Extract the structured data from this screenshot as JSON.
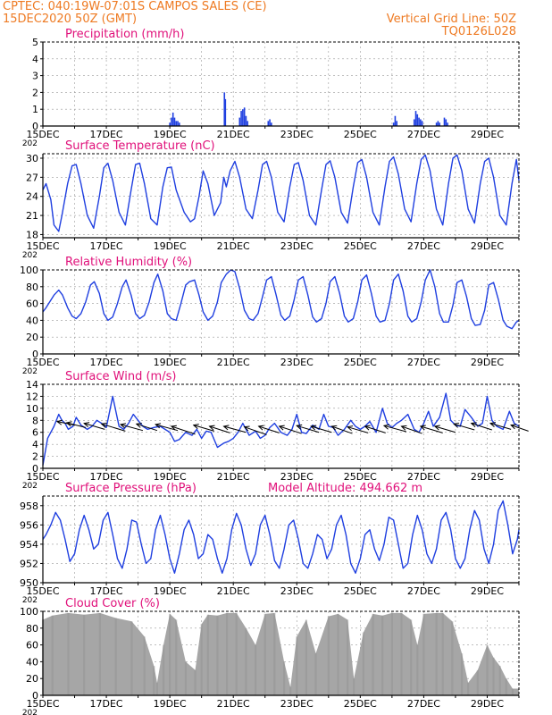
{
  "header": {
    "line1": "CPTEC:   040:19W-07:01S   CAMPOS SALES (CE)",
    "line2": "15DEC2020 50Z (GMT)",
    "vgrid": "Vertical Grid Line: 50Z",
    "code": "TQ0126L028"
  },
  "colors": {
    "header": "#ee7a22",
    "title": "#e0107a",
    "line": "#1f3fe0",
    "cloud": "#a6a6a6",
    "grid": "#999999"
  },
  "x_tick_labels": [
    "15DEC",
    "17DEC",
    "19DEC",
    "21DEC",
    "23DEC",
    "25DEC",
    "27DEC",
    "29DEC"
  ],
  "year_fragment": "202",
  "model_altitude_label": "Model Altitude: 494.662  m",
  "chart_data": [
    {
      "id": "precipitation",
      "type": "bar",
      "title": "Precipitation  (mm/h)",
      "xlim": [
        0,
        15
      ],
      "ylim": [
        0,
        5
      ],
      "yticks": [
        0,
        1,
        2,
        3,
        4,
        5
      ],
      "x": [
        4.0,
        4.05,
        4.1,
        4.15,
        4.2,
        4.25,
        4.3,
        5.72,
        5.75,
        6.2,
        6.25,
        6.3,
        6.35,
        6.4,
        6.45,
        7.1,
        7.15,
        7.2,
        11.05,
        11.1,
        11.15,
        11.7,
        11.75,
        11.8,
        11.85,
        11.9,
        11.95,
        12.4,
        12.45,
        12.5,
        12.65,
        12.7,
        12.75
      ],
      "values": [
        0.2,
        0.5,
        0.8,
        0.5,
        0.3,
        0.3,
        0.2,
        2.0,
        1.6,
        0.5,
        0.9,
        1.0,
        1.1,
        0.6,
        0.3,
        0.3,
        0.4,
        0.2,
        0.2,
        0.6,
        0.3,
        0.4,
        0.9,
        0.7,
        0.5,
        0.4,
        0.3,
        0.2,
        0.3,
        0.2,
        0.5,
        0.4,
        0.2
      ]
    },
    {
      "id": "temperature",
      "type": "line",
      "title": "Surface Temperature (nC)",
      "xlim": [
        0,
        15
      ],
      "ylim": [
        17.5,
        30.7
      ],
      "yticks": [
        18,
        21,
        24,
        27,
        30
      ],
      "x": [
        0.0,
        0.1,
        0.25,
        0.35,
        0.5,
        0.6,
        0.78,
        0.92,
        1.05,
        1.2,
        1.4,
        1.6,
        1.78,
        1.92,
        2.05,
        2.2,
        2.4,
        2.6,
        2.78,
        2.92,
        3.05,
        3.2,
        3.4,
        3.6,
        3.78,
        3.92,
        4.05,
        4.2,
        4.45,
        4.65,
        4.78,
        4.92,
        5.05,
        5.2,
        5.4,
        5.6,
        5.7,
        5.78,
        5.9,
        6.05,
        6.2,
        6.4,
        6.6,
        6.78,
        6.92,
        7.05,
        7.2,
        7.4,
        7.6,
        7.78,
        7.92,
        8.05,
        8.2,
        8.4,
        8.6,
        8.78,
        8.92,
        9.05,
        9.2,
        9.4,
        9.6,
        9.78,
        9.92,
        10.05,
        10.2,
        10.4,
        10.6,
        10.78,
        10.92,
        11.05,
        11.2,
        11.4,
        11.6,
        11.78,
        11.92,
        12.05,
        12.2,
        12.4,
        12.6,
        12.78,
        12.92,
        13.05,
        13.2,
        13.4,
        13.6,
        13.78,
        13.92,
        14.05,
        14.2,
        14.4,
        14.6,
        14.78,
        14.92,
        15.0
      ],
      "values": [
        25.0,
        26.0,
        23.5,
        19.5,
        18.5,
        21.0,
        26.0,
        28.8,
        29.0,
        26.0,
        21.0,
        19.0,
        24.0,
        28.5,
        29.2,
        26.5,
        21.5,
        19.5,
        25.0,
        29.0,
        29.2,
        26.0,
        20.5,
        19.5,
        25.5,
        28.5,
        28.6,
        25.0,
        21.5,
        20.0,
        20.5,
        24.0,
        28.0,
        26.0,
        21.0,
        23.0,
        27.0,
        25.5,
        28.0,
        29.5,
        27.0,
        22.0,
        20.5,
        25.0,
        29.0,
        29.5,
        27.0,
        21.5,
        20.0,
        25.5,
        29.0,
        29.3,
        26.5,
        21.0,
        19.5,
        25.0,
        29.0,
        29.6,
        27.0,
        21.5,
        19.8,
        25.5,
        29.3,
        29.8,
        27.0,
        21.5,
        19.5,
        25.5,
        29.5,
        30.2,
        27.5,
        22.0,
        20.0,
        26.0,
        29.8,
        30.5,
        28.0,
        22.0,
        19.5,
        26.0,
        30.0,
        30.5,
        28.0,
        22.0,
        19.8,
        26.0,
        29.5,
        30.0,
        27.0,
        21.0,
        19.5,
        26.0,
        29.8,
        26.5
      ]
    },
    {
      "id": "humidity",
      "type": "line",
      "title": "Relative Humidity  (%)",
      "xlim": [
        0,
        15
      ],
      "ylim": [
        0,
        100
      ],
      "yticks": [
        0,
        20,
        40,
        60,
        80,
        100
      ],
      "x": [
        0.0,
        0.1,
        0.35,
        0.5,
        0.62,
        0.78,
        0.92,
        1.05,
        1.2,
        1.35,
        1.5,
        1.62,
        1.78,
        1.92,
        2.05,
        2.2,
        2.35,
        2.5,
        2.62,
        2.78,
        2.92,
        3.05,
        3.2,
        3.35,
        3.5,
        3.62,
        3.78,
        3.92,
        4.05,
        4.2,
        4.35,
        4.5,
        4.62,
        4.78,
        4.92,
        5.05,
        5.2,
        5.35,
        5.5,
        5.62,
        5.78,
        5.92,
        6.05,
        6.2,
        6.35,
        6.5,
        6.62,
        6.78,
        6.92,
        7.05,
        7.2,
        7.35,
        7.5,
        7.62,
        7.78,
        7.92,
        8.05,
        8.2,
        8.35,
        8.5,
        8.62,
        8.78,
        8.92,
        9.05,
        9.2,
        9.35,
        9.5,
        9.62,
        9.78,
        9.92,
        10.05,
        10.2,
        10.35,
        10.5,
        10.62,
        10.78,
        10.92,
        11.05,
        11.2,
        11.35,
        11.5,
        11.62,
        11.78,
        11.92,
        12.05,
        12.2,
        12.35,
        12.5,
        12.62,
        12.78,
        12.92,
        13.05,
        13.2,
        13.35,
        13.5,
        13.62,
        13.78,
        13.92,
        14.05,
        14.2,
        14.35,
        14.5,
        14.62,
        14.78,
        14.92,
        15.0
      ],
      "values": [
        50,
        55,
        70,
        76,
        70,
        55,
        45,
        42,
        48,
        62,
        82,
        86,
        72,
        48,
        40,
        44,
        60,
        80,
        88,
        70,
        48,
        42,
        46,
        62,
        85,
        95,
        75,
        48,
        42,
        40,
        60,
        82,
        86,
        88,
        70,
        50,
        40,
        45,
        62,
        85,
        95,
        100,
        98,
        78,
        52,
        42,
        40,
        48,
        68,
        88,
        92,
        70,
        46,
        40,
        45,
        65,
        88,
        92,
        70,
        44,
        38,
        42,
        60,
        86,
        92,
        72,
        45,
        38,
        42,
        62,
        88,
        94,
        72,
        45,
        38,
        40,
        60,
        88,
        95,
        75,
        45,
        38,
        42,
        62,
        88,
        100,
        80,
        48,
        38,
        38,
        58,
        85,
        88,
        68,
        42,
        34,
        35,
        52,
        82,
        85,
        65,
        40,
        33,
        30,
        38,
        40
      ]
    },
    {
      "id": "wind",
      "type": "line",
      "title": "Surface Wind  (m/s)",
      "xlim": [
        0,
        15
      ],
      "ylim": [
        0,
        14
      ],
      "yticks": [
        0,
        2,
        4,
        6,
        8,
        10,
        12,
        14
      ],
      "x": [
        0.0,
        0.05,
        0.15,
        0.25,
        0.35,
        0.5,
        0.6,
        0.7,
        0.8,
        0.95,
        1.05,
        1.2,
        1.4,
        1.55,
        1.7,
        1.85,
        2.0,
        2.2,
        2.4,
        2.55,
        2.7,
        2.85,
        3.0,
        3.15,
        3.3,
        3.5,
        3.7,
        3.85,
        4.0,
        4.15,
        4.3,
        4.5,
        4.7,
        4.85,
        5.0,
        5.15,
        5.3,
        5.5,
        5.7,
        5.85,
        6.0,
        6.15,
        6.3,
        6.5,
        6.7,
        6.85,
        7.0,
        7.15,
        7.3,
        7.5,
        7.7,
        7.85,
        8.0,
        8.15,
        8.3,
        8.5,
        8.7,
        8.85,
        9.0,
        9.15,
        9.3,
        9.5,
        9.7,
        9.85,
        10.0,
        10.15,
        10.3,
        10.5,
        10.7,
        10.85,
        11.0,
        11.15,
        11.3,
        11.5,
        11.7,
        11.85,
        12.0,
        12.15,
        12.3,
        12.5,
        12.7,
        12.85,
        13.0,
        13.15,
        13.3,
        13.5,
        13.7,
        13.85,
        14.0,
        14.15,
        14.3,
        14.5,
        14.7,
        14.85,
        15.0
      ],
      "values": [
        0.5,
        2.0,
        5.0,
        6.0,
        7.0,
        9.0,
        8.0,
        7.5,
        6.5,
        7.0,
        8.5,
        7.2,
        6.5,
        7.0,
        8.0,
        7.5,
        6.8,
        12.0,
        7.0,
        6.5,
        7.5,
        9.0,
        8.0,
        7.0,
        6.5,
        6.8,
        7.0,
        6.5,
        6.0,
        4.5,
        4.8,
        6.0,
        5.5,
        6.5,
        5.0,
        6.2,
        6.0,
        3.5,
        4.2,
        4.5,
        5.0,
        6.0,
        7.5,
        5.5,
        6.2,
        5.0,
        5.5,
        6.8,
        7.5,
        6.0,
        5.5,
        6.5,
        9.0,
        6.0,
        5.8,
        7.2,
        6.5,
        9.0,
        7.0,
        6.8,
        5.5,
        6.5,
        8.0,
        7.0,
        6.5,
        7.0,
        7.8,
        6.0,
        10.0,
        7.5,
        6.8,
        7.5,
        8.0,
        9.0,
        6.5,
        6.0,
        7.5,
        9.5,
        7.0,
        8.5,
        12.5,
        8.0,
        7.2,
        7.0,
        9.8,
        8.5,
        7.0,
        7.5,
        12.0,
        8.0,
        7.0,
        6.5,
        9.5,
        7.5,
        7.0
      ],
      "barbs": [
        {
          "x": 0.45,
          "y": 7.8,
          "dx": 1.1,
          "dy": -0.6
        },
        {
          "x": 0.75,
          "y": 7.6,
          "dx": 1.2,
          "dy": -0.8
        },
        {
          "x": 1.3,
          "y": 7.5,
          "dx": 1.3,
          "dy": -1.0
        },
        {
          "x": 1.85,
          "y": 7.4,
          "dx": 1.5,
          "dy": -1.2
        },
        {
          "x": 2.45,
          "y": 7.3,
          "dx": 1.4,
          "dy": -1.0
        },
        {
          "x": 2.95,
          "y": 7.4,
          "dx": 1.3,
          "dy": -1.1
        },
        {
          "x": 3.55,
          "y": 7.3,
          "dx": 1.4,
          "dy": -1.0
        },
        {
          "x": 4.05,
          "y": 7.0,
          "dx": 1.5,
          "dy": -1.3
        },
        {
          "x": 4.75,
          "y": 7.2,
          "dx": 1.3,
          "dy": -1.0
        },
        {
          "x": 5.25,
          "y": 7.0,
          "dx": 1.3,
          "dy": -1.1
        },
        {
          "x": 5.7,
          "y": 7.0,
          "dx": 1.4,
          "dy": -1.0
        },
        {
          "x": 6.35,
          "y": 6.9,
          "dx": 1.4,
          "dy": -1.3
        },
        {
          "x": 6.8,
          "y": 7.0,
          "dx": 1.3,
          "dy": -1.1
        },
        {
          "x": 7.45,
          "y": 7.0,
          "dx": 1.4,
          "dy": -1.2
        },
        {
          "x": 8.0,
          "y": 7.1,
          "dx": 1.4,
          "dy": -1.1
        },
        {
          "x": 8.45,
          "y": 7.0,
          "dx": 1.3,
          "dy": -1.0
        },
        {
          "x": 9.1,
          "y": 7.0,
          "dx": 1.3,
          "dy": -1.2
        },
        {
          "x": 9.6,
          "y": 6.9,
          "dx": 1.3,
          "dy": -1.0
        },
        {
          "x": 10.15,
          "y": 7.0,
          "dx": 1.3,
          "dy": -1.1
        },
        {
          "x": 10.75,
          "y": 7.1,
          "dx": 1.4,
          "dy": -1.0
        },
        {
          "x": 11.3,
          "y": 7.0,
          "dx": 1.3,
          "dy": -1.2
        },
        {
          "x": 11.9,
          "y": 7.0,
          "dx": 1.4,
          "dy": -1.1
        },
        {
          "x": 12.35,
          "y": 7.0,
          "dx": 1.3,
          "dy": -1.0
        },
        {
          "x": 12.95,
          "y": 7.4,
          "dx": 1.3,
          "dy": -1.0
        },
        {
          "x": 13.5,
          "y": 7.5,
          "dx": 1.3,
          "dy": -1.1
        },
        {
          "x": 14.1,
          "y": 7.5,
          "dx": 1.3,
          "dy": -1.0
        },
        {
          "x": 14.75,
          "y": 7.2,
          "dx": 1.1,
          "dy": -1.0
        }
      ]
    },
    {
      "id": "pressure",
      "type": "line",
      "title": "Surface Pressure (hPa)",
      "xlim": [
        0,
        15
      ],
      "ylim": [
        950,
        959
      ],
      "yticks": [
        950,
        952,
        954,
        956,
        958
      ],
      "x": [
        0.0,
        0.1,
        0.25,
        0.4,
        0.55,
        0.7,
        0.85,
        1.0,
        1.15,
        1.3,
        1.45,
        1.6,
        1.75,
        1.9,
        2.05,
        2.2,
        2.35,
        2.5,
        2.65,
        2.8,
        2.95,
        3.1,
        3.25,
        3.4,
        3.55,
        3.7,
        3.85,
        4.0,
        4.15,
        4.3,
        4.45,
        4.6,
        4.75,
        4.9,
        5.05,
        5.2,
        5.35,
        5.5,
        5.65,
        5.8,
        5.95,
        6.1,
        6.25,
        6.4,
        6.55,
        6.7,
        6.85,
        7.0,
        7.15,
        7.3,
        7.45,
        7.6,
        7.75,
        7.9,
        8.05,
        8.2,
        8.35,
        8.5,
        8.65,
        8.8,
        8.95,
        9.1,
        9.25,
        9.4,
        9.55,
        9.7,
        9.85,
        10.0,
        10.15,
        10.3,
        10.45,
        10.6,
        10.75,
        10.9,
        11.05,
        11.2,
        11.35,
        11.5,
        11.65,
        11.8,
        11.95,
        12.1,
        12.25,
        12.4,
        12.55,
        12.7,
        12.85,
        13.0,
        13.15,
        13.3,
        13.45,
        13.6,
        13.75,
        13.9,
        14.05,
        14.2,
        14.35,
        14.5,
        14.65,
        14.8,
        14.95,
        15.0
      ],
      "values": [
        954.5,
        955.0,
        956.0,
        957.3,
        956.5,
        954.5,
        952.2,
        953.0,
        955.5,
        957.0,
        955.5,
        953.5,
        954.0,
        956.5,
        957.3,
        955.0,
        952.5,
        951.5,
        953.5,
        956.5,
        956.3,
        954.0,
        952.0,
        952.5,
        955.5,
        957.0,
        955.0,
        952.5,
        951.0,
        953.0,
        955.5,
        956.5,
        955.0,
        952.5,
        953.0,
        955.0,
        954.5,
        952.5,
        951.0,
        952.5,
        955.5,
        957.2,
        956.0,
        953.5,
        951.8,
        953.0,
        956.0,
        957.0,
        955.0,
        952.3,
        951.5,
        953.5,
        956.0,
        956.5,
        954.5,
        952.0,
        951.5,
        953.0,
        955.0,
        954.5,
        952.5,
        953.5,
        956.0,
        957.0,
        955.0,
        952.0,
        951.0,
        952.5,
        955.0,
        955.5,
        953.5,
        952.3,
        954.0,
        956.8,
        956.5,
        954.0,
        951.5,
        952.0,
        955.0,
        957.0,
        955.5,
        953.0,
        952.0,
        953.5,
        956.5,
        957.3,
        955.5,
        952.5,
        951.5,
        952.5,
        955.5,
        957.5,
        956.5,
        953.5,
        952.0,
        954.0,
        957.5,
        958.5,
        956.0,
        953.0,
        954.5,
        955.5
      ]
    },
    {
      "id": "cloud",
      "type": "bar",
      "title": "Cloud Cover  (%)",
      "xlim": [
        0,
        15
      ],
      "ylim": [
        0,
        100
      ],
      "yticks": [
        0,
        20,
        40,
        60,
        80,
        100
      ],
      "x": [
        0.0,
        0.3,
        0.8,
        1.3,
        1.8,
        2.3,
        2.8,
        3.2,
        3.5,
        3.6,
        3.8,
        4.0,
        4.2,
        4.5,
        4.8,
        5.0,
        5.2,
        5.5,
        5.8,
        6.1,
        6.4,
        6.7,
        7.0,
        7.3,
        7.6,
        7.8,
        8.0,
        8.3,
        8.6,
        9.0,
        9.3,
        9.6,
        9.8,
        10.1,
        10.4,
        10.7,
        11.0,
        11.3,
        11.6,
        11.8,
        12.0,
        12.4,
        12.6,
        12.9,
        13.2,
        13.4,
        13.7,
        14.0,
        14.2,
        14.4,
        14.6,
        14.8
      ],
      "values": [
        90,
        95,
        98,
        96,
        98,
        92,
        88,
        70,
        35,
        15,
        60,
        97,
        90,
        40,
        30,
        85,
        96,
        95,
        98,
        98,
        80,
        60,
        97,
        98,
        40,
        10,
        70,
        90,
        50,
        94,
        97,
        90,
        20,
        75,
        97,
        95,
        98,
        98,
        90,
        60,
        97,
        98,
        98,
        88,
        50,
        15,
        30,
        60,
        45,
        35,
        20,
        8
      ]
    }
  ]
}
